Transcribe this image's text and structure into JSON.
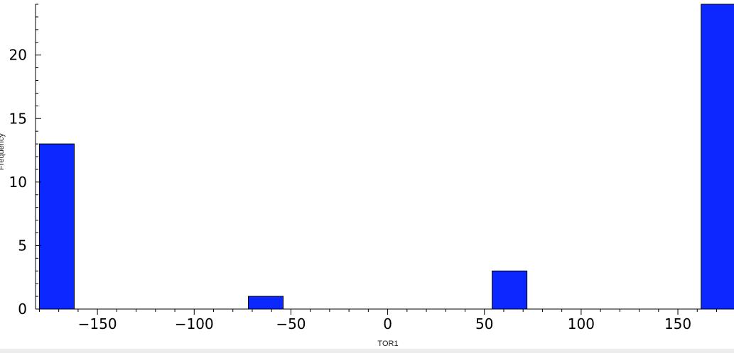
{
  "chart_data": {
    "type": "bar",
    "title": "",
    "xlabel": "TOR1",
    "ylabel": "Frequency",
    "bin_width": 18,
    "bins": [
      {
        "start": -180,
        "end": -162,
        "value": 13
      },
      {
        "start": -72,
        "end": -54,
        "value": 1
      },
      {
        "start": 54,
        "end": 72,
        "value": 3
      },
      {
        "start": 162,
        "end": 180,
        "value": 24
      }
    ],
    "xlim": [
      -182,
      179
    ],
    "ylim": [
      0,
      24
    ],
    "xticks": [
      -150,
      -100,
      -50,
      0,
      50,
      100,
      150
    ],
    "xtick_labels": [
      "−150",
      "−100",
      "−50",
      "0",
      "50",
      "100",
      "150"
    ],
    "yticks": [
      0,
      5,
      10,
      15,
      20
    ],
    "ytick_labels": [
      "0",
      "5",
      "10",
      "15",
      "20"
    ],
    "grid": false,
    "bar_color": "#0a28ff",
    "bar_edge_color": "#000000"
  }
}
